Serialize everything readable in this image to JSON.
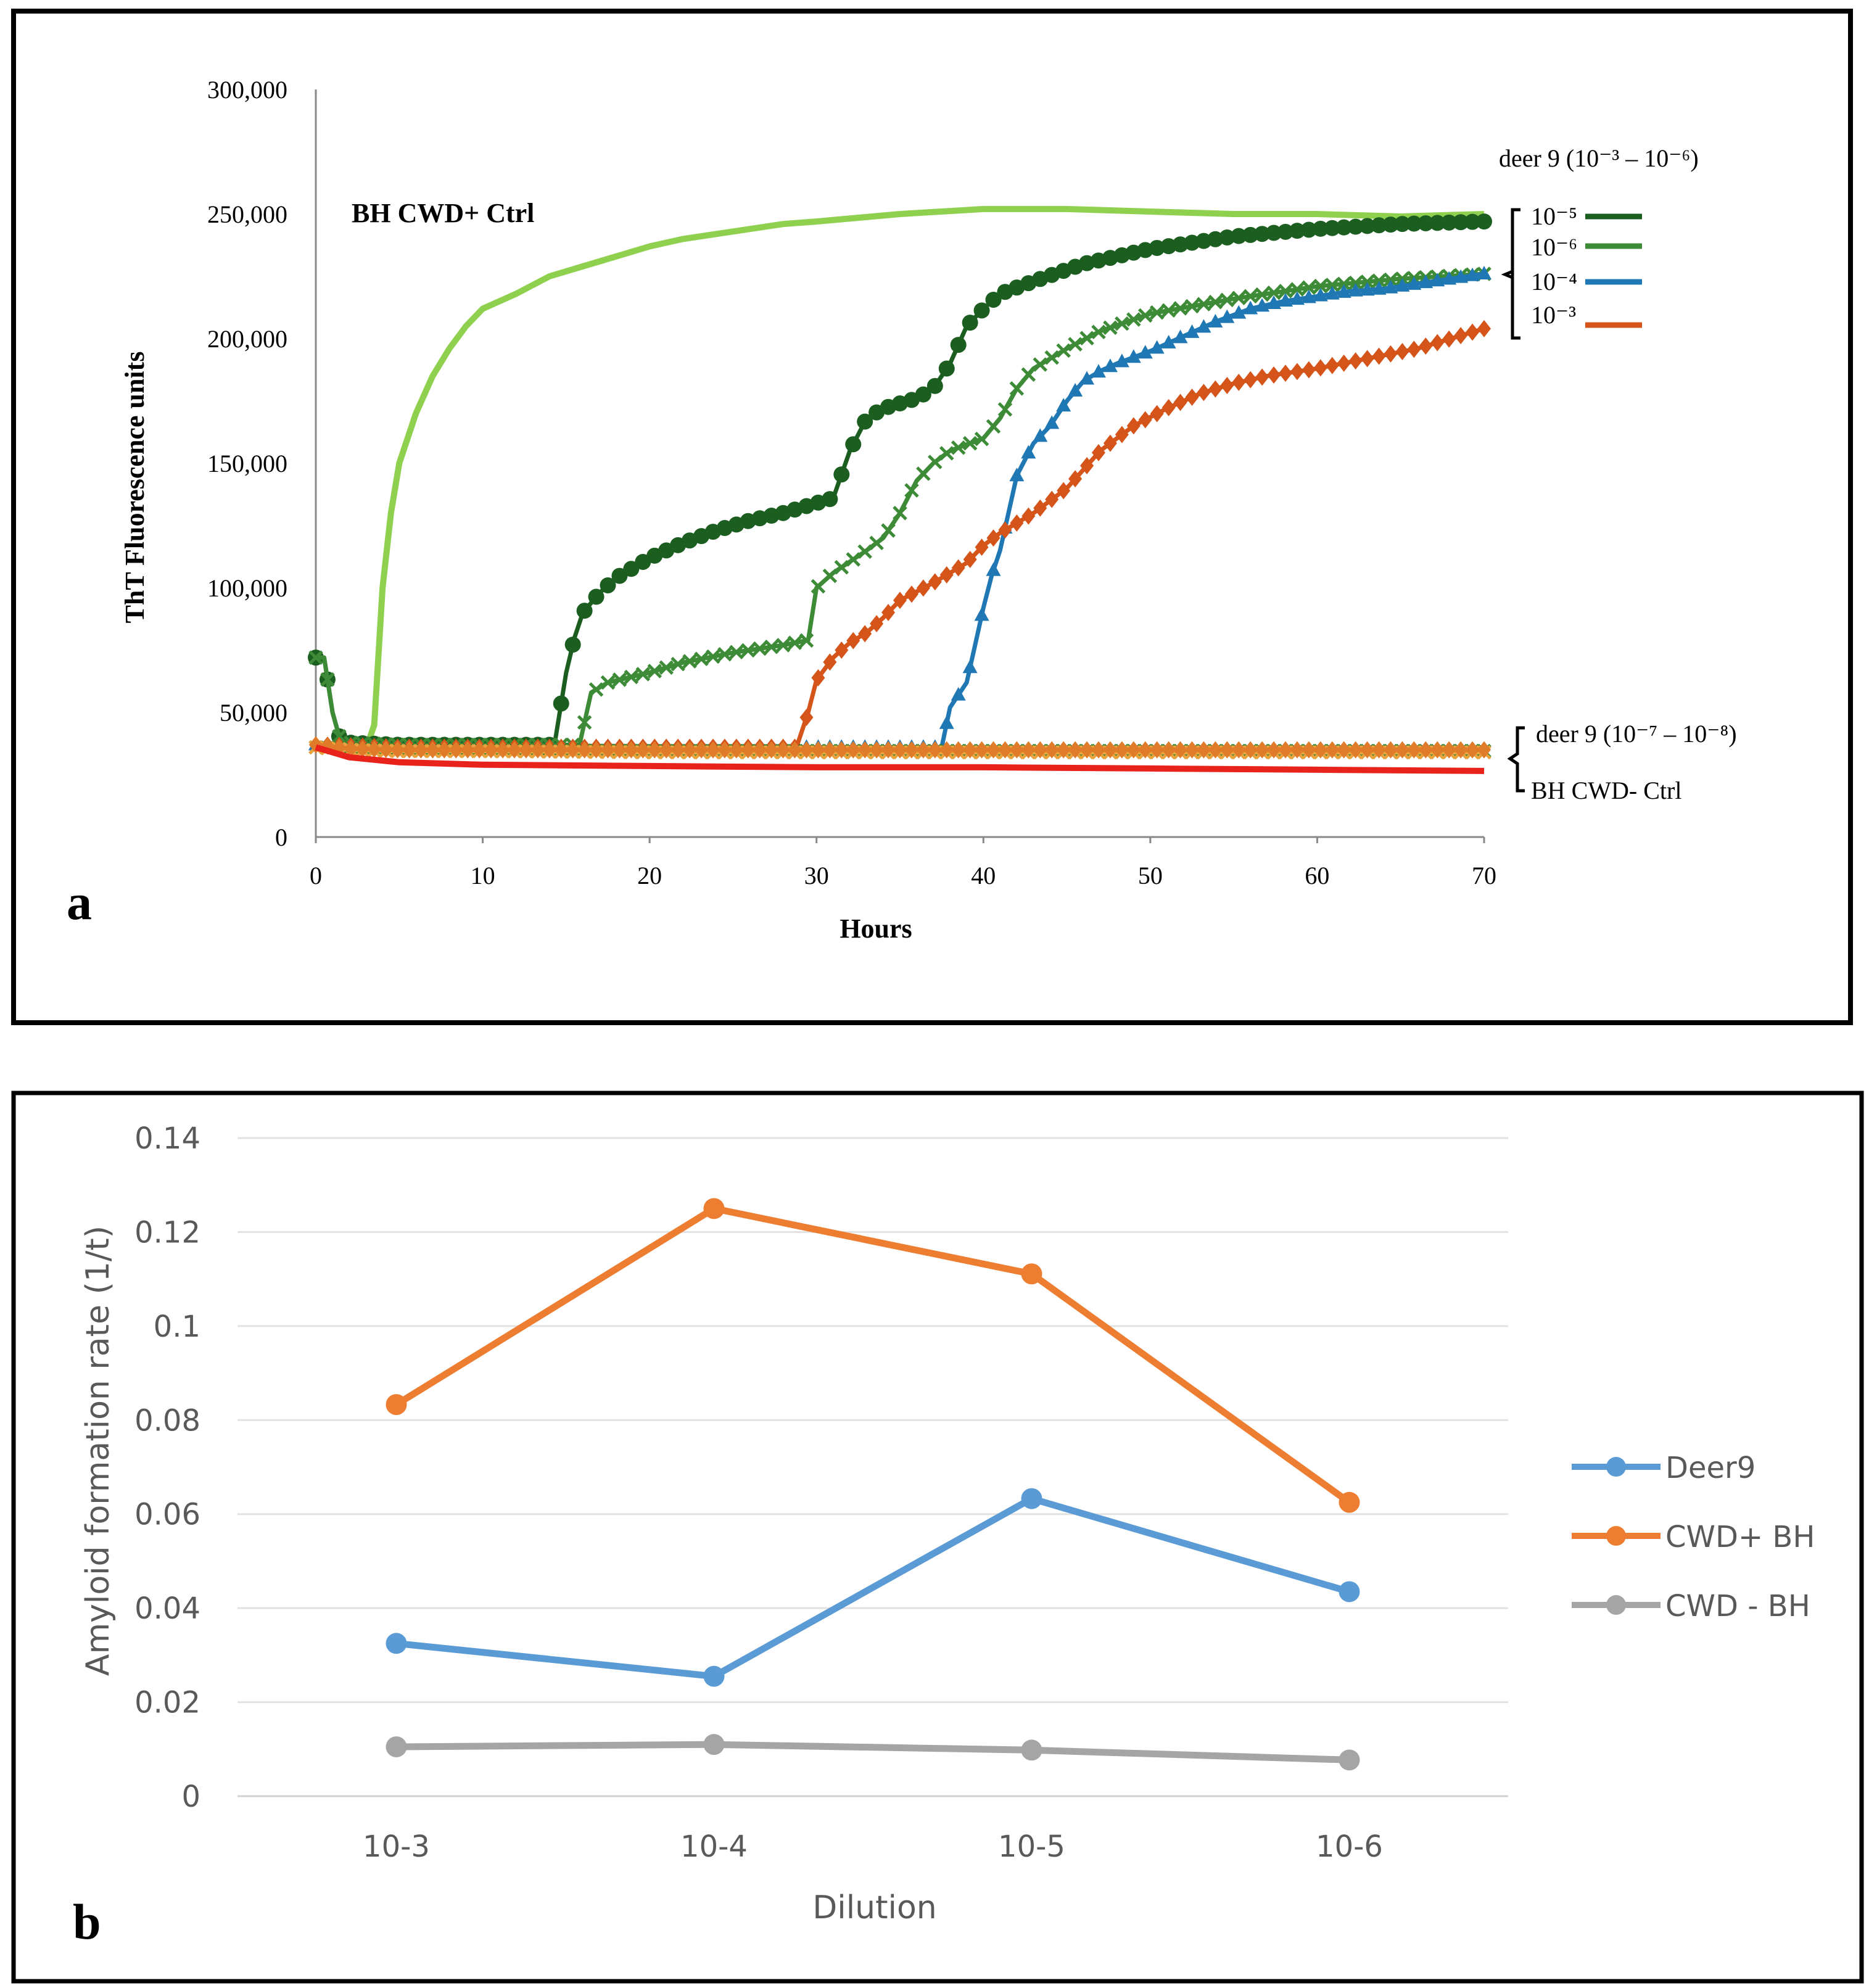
{
  "panel_letters": {
    "a": "a",
    "b": "b"
  },
  "chart_data": [
    {
      "type": "line",
      "title": "BH CWD+ Ctrl",
      "xlabel": "Hours",
      "ylabel": "ThT Fluorescence units",
      "xlim": [
        0,
        70
      ],
      "ylim": [
        0,
        300000
      ],
      "x_ticks": [
        0,
        10,
        20,
        30,
        40,
        50,
        60,
        70
      ],
      "y_ticks": [
        0,
        50000,
        100000,
        150000,
        200000,
        250000,
        300000
      ],
      "y_tick_labels": [
        "0",
        "50,000",
        "100,000",
        "150,000",
        "200,000",
        "250,000",
        "300,000"
      ],
      "grid": false,
      "legend_title": "deer 9 (10⁻³ – 10⁻⁶)",
      "legend_entries": [
        {
          "label": "10⁻⁵",
          "color": "#1b5e20"
        },
        {
          "label": "10⁻⁶",
          "color": "#3d8b37"
        },
        {
          "label": "10⁻⁴",
          "color": "#1f77b4"
        },
        {
          "label": "10⁻³",
          "color": "#d4541a"
        }
      ],
      "bracket_labels": [
        "deer 9 (10⁻⁷ – 10⁻⁸)",
        "BH CWD- Ctrl"
      ],
      "series": [
        {
          "name": "BH CWD+ Ctrl",
          "color": "#8fd14f",
          "marker": "none",
          "points": [
            [
              0,
              37000
            ],
            [
              1,
              36000
            ],
            [
              2,
              35000
            ],
            [
              3,
              35000
            ],
            [
              3.5,
              45000
            ],
            [
              4,
              100000
            ],
            [
              4.5,
              130000
            ],
            [
              5,
              150000
            ],
            [
              6,
              170000
            ],
            [
              7,
              185000
            ],
            [
              8,
              196000
            ],
            [
              9,
              205000
            ],
            [
              10,
              212000
            ],
            [
              12,
              218000
            ],
            [
              14,
              225000
            ],
            [
              16,
              229000
            ],
            [
              18,
              233000
            ],
            [
              20,
              237000
            ],
            [
              22,
              240000
            ],
            [
              25,
              243000
            ],
            [
              28,
              246000
            ],
            [
              30,
              247000
            ],
            [
              35,
              250000
            ],
            [
              40,
              252000
            ],
            [
              45,
              252000
            ],
            [
              50,
              251000
            ],
            [
              55,
              250000
            ],
            [
              60,
              250000
            ],
            [
              65,
              249000
            ],
            [
              70,
              250000
            ]
          ]
        },
        {
          "name": "10⁻⁵",
          "color": "#1b5e20",
          "marker": "circle",
          "points": [
            [
              0,
              72000
            ],
            [
              0.5,
              72000
            ],
            [
              1,
              50000
            ],
            [
              1.5,
              38000
            ],
            [
              5,
              37000
            ],
            [
              10,
              37000
            ],
            [
              13,
              37000
            ],
            [
              14.3,
              37000
            ],
            [
              15,
              66000
            ],
            [
              15.5,
              80000
            ],
            [
              16,
              90000
            ],
            [
              17,
              98000
            ],
            [
              18,
              104000
            ],
            [
              20,
              112000
            ],
            [
              22,
              118000
            ],
            [
              24,
              123000
            ],
            [
              26,
              127000
            ],
            [
              28,
              130000
            ],
            [
              30,
              134000
            ],
            [
              31,
              136000
            ],
            [
              32,
              155000
            ],
            [
              33,
              168000
            ],
            [
              34,
              172000
            ],
            [
              36,
              176000
            ],
            [
              37,
              180000
            ],
            [
              38,
              190000
            ],
            [
              39,
              205000
            ],
            [
              40,
              212000
            ],
            [
              41,
              218000
            ],
            [
              43,
              223000
            ],
            [
              46,
              230000
            ],
            [
              50,
              236000
            ],
            [
              55,
              241000
            ],
            [
              60,
              244000
            ],
            [
              65,
              246000
            ],
            [
              70,
              247000
            ]
          ]
        },
        {
          "name": "10⁻⁶",
          "color": "#3d8b37",
          "marker": "x",
          "points": [
            [
              0,
              72000
            ],
            [
              0.5,
              72000
            ],
            [
              1,
              50000
            ],
            [
              1.5,
              38000
            ],
            [
              5,
              37000
            ],
            [
              10,
              37000
            ],
            [
              15.8,
              37000
            ],
            [
              16.5,
              58000
            ],
            [
              17.5,
              62000
            ],
            [
              20,
              66000
            ],
            [
              22,
              70000
            ],
            [
              25,
              74000
            ],
            [
              28,
              77000
            ],
            [
              29.5,
              79000
            ],
            [
              30,
              100000
            ],
            [
              31,
              106000
            ],
            [
              33,
              115000
            ],
            [
              34,
              120000
            ],
            [
              35,
              130000
            ],
            [
              36,
              143000
            ],
            [
              37,
              150000
            ],
            [
              38,
              155000
            ],
            [
              40,
              160000
            ],
            [
              41,
              168000
            ],
            [
              42,
              180000
            ],
            [
              43,
              188000
            ],
            [
              45,
              196000
            ],
            [
              47,
              203000
            ],
            [
              50,
              210000
            ],
            [
              55,
              216000
            ],
            [
              60,
              221000
            ],
            [
              65,
              224000
            ],
            [
              70,
              226000
            ]
          ]
        },
        {
          "name": "10⁻⁴",
          "color": "#1f77b4",
          "marker": "triangle",
          "points": [
            [
              0,
              37000
            ],
            [
              5,
              36000
            ],
            [
              10,
              36000
            ],
            [
              20,
              36000
            ],
            [
              30,
              36000
            ],
            [
              37.5,
              36000
            ],
            [
              38,
              52000
            ],
            [
              39,
              62000
            ],
            [
              39.5,
              77000
            ],
            [
              40,
              92000
            ],
            [
              40.5,
              105000
            ],
            [
              41,
              115000
            ],
            [
              41.5,
              130000
            ],
            [
              42,
              145000
            ],
            [
              43,
              158000
            ],
            [
              44,
              165000
            ],
            [
              45,
              175000
            ],
            [
              46,
              183000
            ],
            [
              47,
              187000
            ],
            [
              48,
              190000
            ],
            [
              50,
              195000
            ],
            [
              52,
              201000
            ],
            [
              54,
              207000
            ],
            [
              56,
              212000
            ],
            [
              58,
              215000
            ],
            [
              60,
              217000
            ],
            [
              62,
              219000
            ],
            [
              64,
              220000
            ],
            [
              66,
              222000
            ],
            [
              68,
              224000
            ],
            [
              70,
              226000
            ]
          ]
        },
        {
          "name": "10⁻³",
          "color": "#d4541a",
          "marker": "diamond",
          "points": [
            [
              0,
              37000
            ],
            [
              5,
              36000
            ],
            [
              10,
              36000
            ],
            [
              20,
              36000
            ],
            [
              28.8,
              36000
            ],
            [
              29.5,
              50000
            ],
            [
              30,
              63000
            ],
            [
              31,
              72000
            ],
            [
              32,
              78000
            ],
            [
              33,
              82000
            ],
            [
              34,
              88000
            ],
            [
              35,
              95000
            ],
            [
              37,
              102000
            ],
            [
              39,
              110000
            ],
            [
              40,
              117000
            ],
            [
              41,
              122000
            ],
            [
              43,
              130000
            ],
            [
              45,
              140000
            ],
            [
              47,
              155000
            ],
            [
              49,
              165000
            ],
            [
              51,
              172000
            ],
            [
              53,
              178000
            ],
            [
              55,
              182000
            ],
            [
              57,
              185000
            ],
            [
              60,
              188000
            ],
            [
              63,
              192000
            ],
            [
              66,
              196000
            ],
            [
              68,
              200000
            ],
            [
              70,
              204000
            ]
          ]
        },
        {
          "name": "deer 9 (10⁻⁷)",
          "color": "#2e7d32",
          "marker": "x",
          "points": [
            [
              0,
              36000
            ],
            [
              2,
              35500
            ],
            [
              5,
              35000
            ],
            [
              10,
              35000
            ],
            [
              20,
              34500
            ],
            [
              30,
              34500
            ],
            [
              40,
              34500
            ],
            [
              50,
              34500
            ],
            [
              60,
              34500
            ],
            [
              70,
              34500
            ]
          ]
        },
        {
          "name": "deer 9 (10⁻⁸)",
          "color": "#e8a33c",
          "marker": "x",
          "points": [
            [
              0,
              36000
            ],
            [
              2,
              35000
            ],
            [
              5,
              34500
            ],
            [
              10,
              34500
            ],
            [
              20,
              34000
            ],
            [
              30,
              34000
            ],
            [
              40,
              34000
            ],
            [
              50,
              34000
            ],
            [
              60,
              34000
            ],
            [
              70,
              34000
            ]
          ]
        },
        {
          "name": "orange baseline",
          "color": "#e07b2a",
          "marker": "diamond",
          "points": [
            [
              0,
              37000
            ],
            [
              2,
              35500
            ],
            [
              5,
              35000
            ],
            [
              10,
              35000
            ],
            [
              20,
              35000
            ],
            [
              30,
              35000
            ],
            [
              40,
              35000
            ],
            [
              50,
              35000
            ],
            [
              60,
              35000
            ],
            [
              70,
              35000
            ]
          ]
        },
        {
          "name": "BH CWD- Ctrl",
          "color": "#e8231b",
          "marker": "none",
          "points": [
            [
              0,
              36000
            ],
            [
              2,
              32000
            ],
            [
              5,
              30000
            ],
            [
              10,
              29000
            ],
            [
              20,
              28500
            ],
            [
              30,
              28000
            ],
            [
              40,
              28000
            ],
            [
              50,
              27500
            ],
            [
              60,
              27000
            ],
            [
              70,
              26500
            ]
          ]
        }
      ]
    },
    {
      "type": "line",
      "title": "",
      "xlabel": "Dilution",
      "ylabel": "Amyloid formation rate (1/t)",
      "categories": [
        "10-3",
        "10-4",
        "10-5",
        "10-6"
      ],
      "ylim": [
        0,
        0.14
      ],
      "y_ticks": [
        0,
        0.02,
        0.04,
        0.06,
        0.08,
        0.1,
        0.12,
        0.14
      ],
      "y_tick_labels": [
        "0",
        "0.02",
        "0.04",
        "0.06",
        "0.08",
        "0.1",
        "0.12",
        "0.14"
      ],
      "grid": true,
      "legend_position": "right",
      "series": [
        {
          "name": "Deer9",
          "color": "#5b9bd5",
          "values": [
            0.0325,
            0.0255,
            0.0633,
            0.0435
          ]
        },
        {
          "name": "CWD+ BH",
          "color": "#ed7d31",
          "values": [
            0.0833,
            0.125,
            0.1111,
            0.0625
          ]
        },
        {
          "name": "CWD - BH",
          "color": "#a5a5a5",
          "values": [
            0.0105,
            0.011,
            0.0098,
            0.0077
          ]
        }
      ]
    }
  ]
}
